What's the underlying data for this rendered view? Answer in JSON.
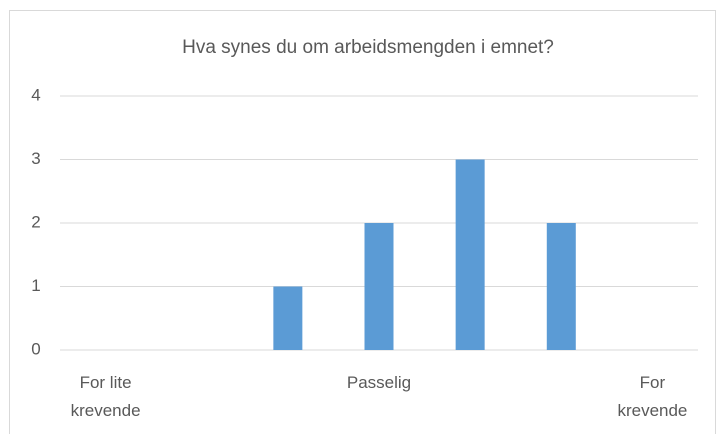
{
  "chart_data": {
    "type": "bar",
    "title": "Hva synes du om arbeidsmengden i emnet?",
    "categories": [
      "For lite krevende",
      null,
      null,
      "Passelig",
      null,
      null,
      "For krevende"
    ],
    "values": [
      0,
      0,
      1,
      2,
      3,
      2,
      0
    ],
    "color": "#5b9bd5",
    "ylim": [
      0,
      4
    ],
    "yticks": [
      0,
      1,
      2,
      3,
      4
    ],
    "grid": true
  }
}
